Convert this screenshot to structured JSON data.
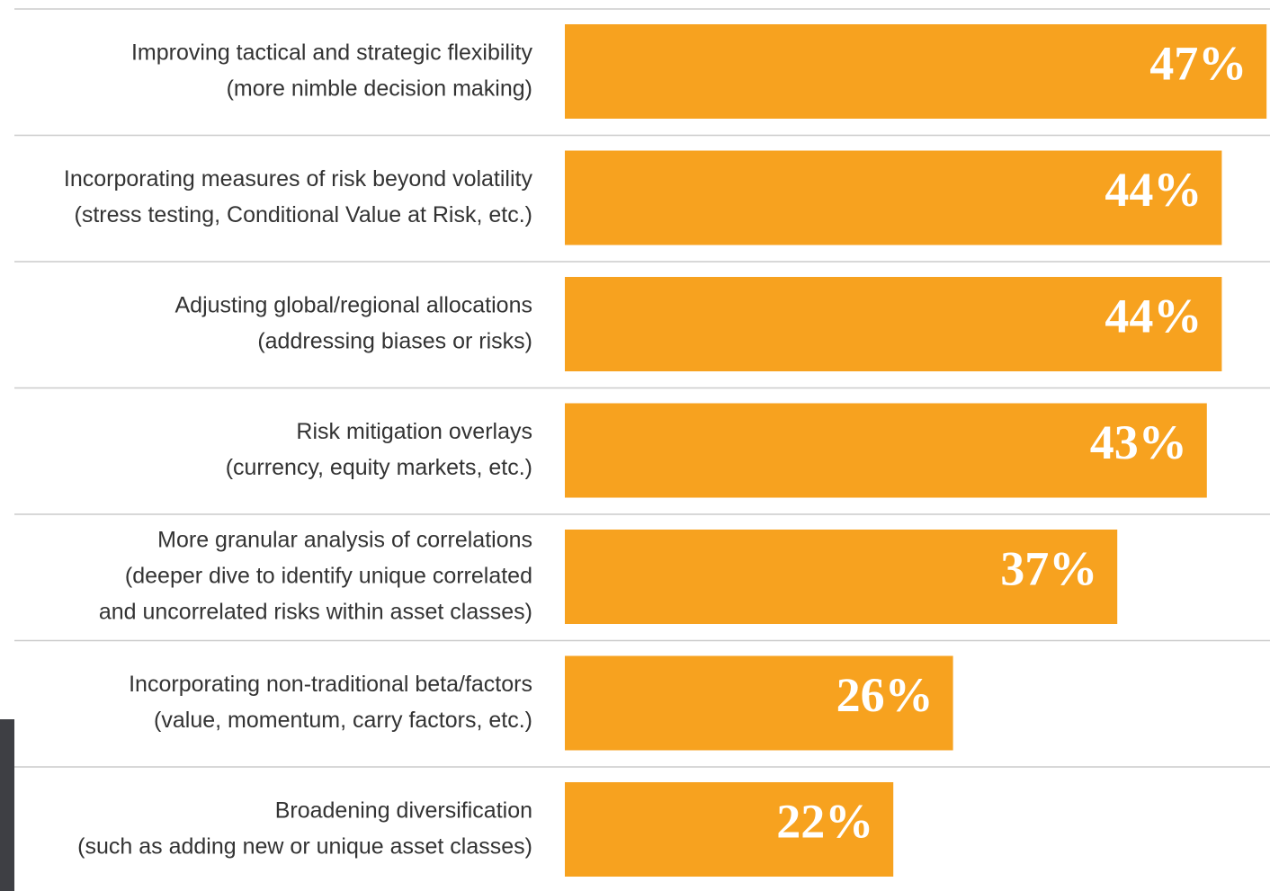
{
  "chart_data": {
    "type": "barh",
    "categories": [
      [
        "Improving tactical and strategic flexibility",
        "(more nimble decision making)"
      ],
      [
        "Incorporating measures of risk beyond volatility",
        "(stress testing, Conditional Value at Risk, etc.)"
      ],
      [
        "Adjusting global/regional allocations",
        "(addressing biases or risks)"
      ],
      [
        "Risk mitigation overlays",
        "(currency, equity markets, etc.)"
      ],
      [
        "More granular analysis of correlations",
        "(deeper dive to identify unique correlated",
        "and uncorrelated risks within asset classes)"
      ],
      [
        "Incorporating non-traditional beta/factors",
        "(value, momentum, carry factors, etc.)"
      ],
      [
        "Broadening diversification",
        "(such as adding new or unique asset classes)"
      ]
    ],
    "values": [
      47,
      44,
      44,
      43,
      37,
      26,
      22
    ],
    "value_labels": [
      "47%",
      "44%",
      "44%",
      "43%",
      "37%",
      "26%",
      "22%"
    ],
    "color": "#f7a21f"
  }
}
